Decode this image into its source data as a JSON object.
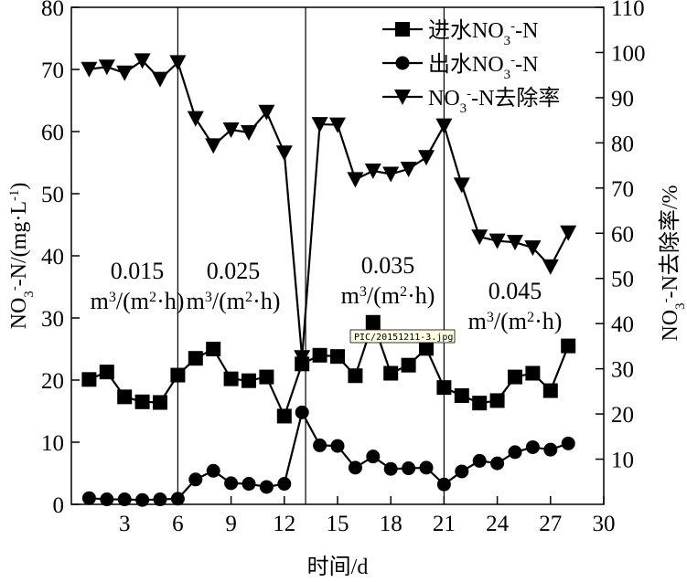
{
  "chart_data": {
    "type": "line",
    "xlabel": "时间/d",
    "ylabel": "NO3--N/(mg·L-1)",
    "y2label": "NO3--N去除率/%",
    "xlim": [
      0,
      30
    ],
    "ylim": [
      0,
      80
    ],
    "y2lim": [
      0,
      110
    ],
    "x_ticks": [
      3,
      6,
      9,
      12,
      15,
      18,
      21,
      24,
      27,
      30
    ],
    "y_ticks": [
      0,
      10,
      20,
      30,
      40,
      50,
      60,
      70,
      80
    ],
    "y2_ticks": [
      10,
      20,
      30,
      40,
      50,
      60,
      70,
      80,
      90,
      100,
      110
    ],
    "legend_position": "top-right",
    "phase_lines_x": [
      6,
      13.2,
      21
    ],
    "phase_labels": [
      {
        "rate": "0.015",
        "unit": "m³/(m²·h)"
      },
      {
        "rate": "0.025",
        "unit": "m³/(m²·h)"
      },
      {
        "rate": "0.035",
        "unit": "m³/(m²·h)"
      },
      {
        "rate": "0.045",
        "unit": "m³/(m²·h)"
      }
    ],
    "tooltip": "PIC/20151211-3.jpg",
    "series": [
      {
        "name": "进水NO3--N",
        "marker": "square",
        "axis": "left",
        "x": [
          1,
          2,
          3,
          4,
          5,
          6,
          7,
          8,
          9,
          10,
          11,
          12,
          13,
          14,
          15,
          16,
          17,
          18,
          19,
          20,
          21,
          22,
          23,
          24,
          25,
          26,
          27,
          28
        ],
        "values": [
          20.1,
          21.3,
          17.3,
          16.5,
          16.4,
          20.8,
          23.5,
          25.0,
          20.2,
          19.9,
          20.5,
          14.2,
          22.6,
          24.0,
          23.8,
          20.7,
          29.3,
          21.1,
          22.4,
          25.1,
          18.8,
          17.5,
          16.3,
          16.7,
          20.5,
          21.1,
          18.3,
          25.5
        ]
      },
      {
        "name": "出水NO3--N",
        "marker": "circle",
        "axis": "left",
        "x": [
          1,
          2,
          3,
          4,
          5,
          6,
          7,
          8,
          9,
          10,
          11,
          12,
          13,
          14,
          15,
          16,
          17,
          18,
          19,
          20,
          21,
          22,
          23,
          24,
          25,
          26,
          27,
          28
        ],
        "values": [
          1.0,
          0.8,
          0.8,
          0.7,
          0.8,
          0.9,
          4.0,
          5.4,
          3.4,
          3.3,
          2.8,
          3.3,
          14.8,
          9.5,
          9.4,
          5.9,
          7.7,
          5.7,
          5.8,
          5.9,
          3.2,
          5.3,
          7.0,
          6.6,
          8.4,
          9.2,
          8.8,
          9.8
        ]
      },
      {
        "name": "NO3--N去除率",
        "marker": "triangle-down",
        "axis": "right",
        "x": [
          1,
          2,
          3,
          4,
          5,
          6,
          7,
          8,
          9,
          10,
          11,
          12,
          13,
          14,
          15,
          16,
          17,
          18,
          19,
          20,
          21,
          22,
          23,
          24,
          25,
          26,
          27,
          28
        ],
        "values": [
          96.3,
          96.8,
          95.5,
          98.2,
          94.1,
          97.8,
          85.4,
          79.4,
          82.9,
          82.3,
          86.8,
          77.8,
          32.5,
          84.1,
          84.0,
          71.9,
          73.8,
          73.1,
          74.2,
          76.8,
          83.8,
          70.7,
          59.2,
          58.3,
          58.0,
          56.8,
          52.6,
          60.1
        ]
      }
    ]
  }
}
